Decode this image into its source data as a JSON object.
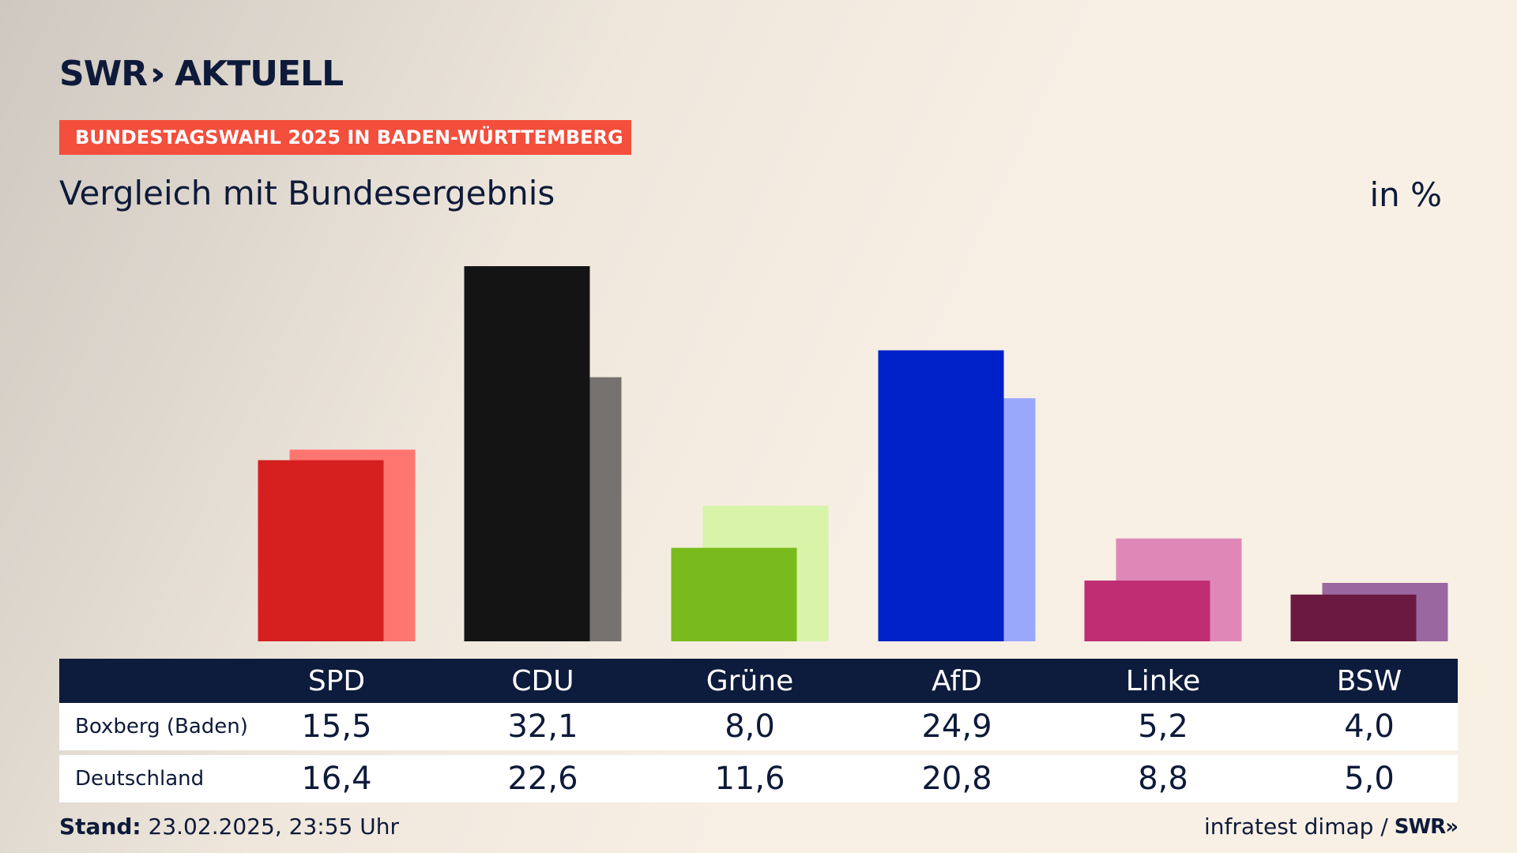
{
  "brand": {
    "logo_text": "SWR",
    "logo_chevrons": "»",
    "logo_suffix": "AKTUELL"
  },
  "kicker": "BUNDESTAGSWAHL 2025 IN BADEN-WÜRTTEMBERG",
  "title": "Vergleich mit Bundesergebnis",
  "unit": "in %",
  "table": {
    "rows": [
      {
        "label": "Boxberg (Baden)",
        "values": [
          "15,5",
          "32,1",
          "8,0",
          "24,9",
          "5,2",
          "4,0"
        ]
      },
      {
        "label": "Deutschland",
        "values": [
          "16,4",
          "22,6",
          "11,6",
          "20,8",
          "8,8",
          "5,0"
        ]
      }
    ]
  },
  "footer": {
    "stand_label": "Stand:",
    "stand_value": "23.02.2025, 23:55 Uhr",
    "source": "infratest dimap /",
    "source_logo": "SWR»"
  },
  "chart_data": {
    "type": "bar",
    "categories": [
      "SPD",
      "CDU",
      "Grüne",
      "AfD",
      "Linke",
      "BSW"
    ],
    "series": [
      {
        "name": "Boxberg (Baden)",
        "values": [
          15.5,
          32.1,
          8.0,
          24.9,
          5.2,
          4.0
        ]
      },
      {
        "name": "Deutschland",
        "values": [
          16.4,
          22.6,
          11.6,
          20.8,
          8.8,
          5.0
        ]
      }
    ],
    "colors_primary": [
      "#d62020",
      "#141414",
      "#79bb1c",
      "#0021c8",
      "#bf2d73",
      "#6a1a40"
    ],
    "colors_secondary": [
      "#ff7670",
      "#767270",
      "#d8f4a8",
      "#9aa8fb",
      "#df88b8",
      "#9b67a0"
    ],
    "ylim": [
      0,
      33
    ],
    "grid": false,
    "title": "Vergleich mit Bundesergebnis",
    "ylabel": "in %"
  }
}
